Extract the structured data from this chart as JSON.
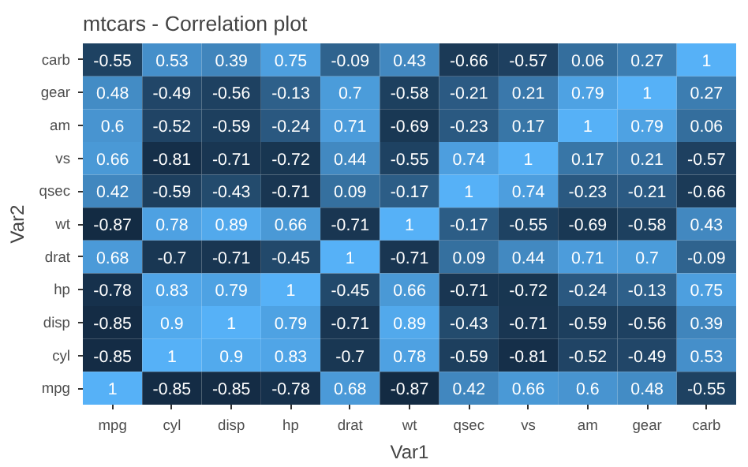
{
  "chart_data": {
    "type": "heatmap",
    "title": "mtcars - Correlation plot",
    "xlabel": "Var1",
    "ylabel": "Var2",
    "categories": [
      "mpg",
      "cyl",
      "disp",
      "hp",
      "drat",
      "wt",
      "qsec",
      "vs",
      "am",
      "gear",
      "carb"
    ],
    "y_categories": [
      "carb",
      "gear",
      "am",
      "vs",
      "qsec",
      "wt",
      "drat",
      "hp",
      "disp",
      "cyl",
      "mpg"
    ],
    "cells": [
      [
        -0.55,
        0.53,
        0.39,
        0.75,
        -0.09,
        0.43,
        -0.66,
        -0.57,
        0.06,
        0.27,
        1
      ],
      [
        0.48,
        -0.49,
        -0.56,
        -0.13,
        0.7,
        -0.58,
        -0.21,
        0.21,
        0.79,
        1,
        0.27
      ],
      [
        0.6,
        -0.52,
        -0.59,
        -0.24,
        0.71,
        -0.69,
        -0.23,
        0.17,
        1,
        0.79,
        0.06
      ],
      [
        0.66,
        -0.81,
        -0.71,
        -0.72,
        0.44,
        -0.55,
        0.74,
        1,
        0.17,
        0.21,
        -0.57
      ],
      [
        0.42,
        -0.59,
        -0.43,
        -0.71,
        0.09,
        -0.17,
        1,
        0.74,
        -0.23,
        -0.21,
        -0.66
      ],
      [
        -0.87,
        0.78,
        0.89,
        0.66,
        -0.71,
        1,
        -0.17,
        -0.55,
        -0.69,
        -0.58,
        0.43
      ],
      [
        0.68,
        -0.7,
        -0.71,
        -0.45,
        1,
        -0.71,
        0.09,
        0.44,
        0.71,
        0.7,
        -0.09
      ],
      [
        -0.78,
        0.83,
        0.79,
        1,
        -0.45,
        0.66,
        -0.71,
        -0.72,
        -0.24,
        -0.13,
        0.75
      ],
      [
        -0.85,
        0.9,
        1,
        0.79,
        -0.71,
        0.89,
        -0.43,
        -0.71,
        -0.59,
        -0.56,
        0.39
      ],
      [
        -0.85,
        1,
        0.9,
        0.83,
        -0.7,
        0.78,
        -0.59,
        -0.81,
        -0.52,
        -0.49,
        0.53
      ],
      [
        1,
        -0.85,
        -0.85,
        -0.78,
        0.68,
        -0.87,
        0.42,
        0.66,
        0.6,
        0.48,
        -0.55
      ]
    ],
    "colors": [
      "#132b43",
      "#56b1f7"
    ],
    "data_labels": true
  }
}
